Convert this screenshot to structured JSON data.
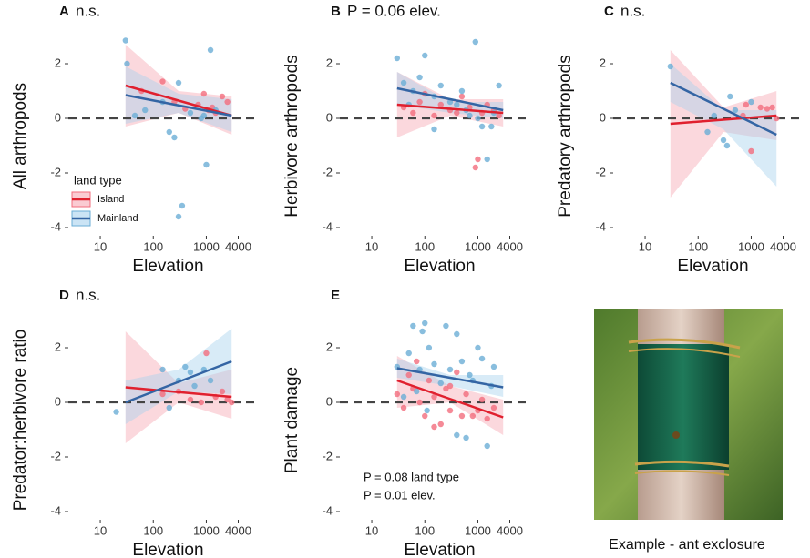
{
  "chart_data": [
    {
      "type": "scatter",
      "label": "A",
      "annotation": "n.s.",
      "xlabel": "Elevation",
      "ylabel": "All arthropods",
      "log_x": true,
      "xlim": [
        2.5,
        9000
      ],
      "xticks": [
        10,
        100,
        1000,
        4000
      ],
      "ylim": [
        -4.3,
        3
      ],
      "yticks": [
        -4,
        -2,
        0,
        2
      ],
      "reference_line": 0,
      "legend": {
        "title": "land type",
        "position": "bottom-left"
      },
      "series": [
        {
          "name": "Island",
          "color": "#f26d7d",
          "line_color": "#e0202e",
          "band_color": "#f7a8b4",
          "x": [
            60,
            150,
            250,
            400,
            700,
            900,
            1100,
            1300,
            1500,
            2000,
            2500
          ],
          "values": [
            1.0,
            1.35,
            0.6,
            0.35,
            0.5,
            0.9,
            0.3,
            0.4,
            0.2,
            0.8,
            0.6
          ],
          "fit": {
            "x": [
              30,
              300,
              3000
            ],
            "y": [
              1.2,
              0.65,
              0.1
            ],
            "lower": [
              -0.3,
              0.2,
              -0.6
            ],
            "upper": [
              2.7,
              1.0,
              0.8
            ]
          }
        },
        {
          "name": "Mainland",
          "color": "#6baed6",
          "line_color": "#3465a4",
          "band_color": "#a9d2ee",
          "x": [
            30,
            32,
            45,
            70,
            150,
            200,
            250,
            300,
            350,
            500,
            800,
            1000,
            1200,
            1500,
            300,
            900
          ],
          "values": [
            2.85,
            2.0,
            0.1,
            0.3,
            0.6,
            -0.5,
            -0.7,
            -3.6,
            -3.2,
            0.2,
            0.0,
            -1.7,
            2.5,
            0.3,
            1.3,
            0.1
          ],
          "fit": {
            "x": [
              30,
              300,
              3000
            ],
            "y": [
              0.85,
              0.475,
              0.1
            ],
            "lower": [
              -0.2,
              0.2,
              -0.5
            ],
            "upper": [
              1.9,
              0.9,
              0.7
            ]
          }
        }
      ]
    },
    {
      "type": "scatter",
      "label": "B",
      "annotation": "P = 0.06 elev.",
      "xlabel": "Elevation",
      "ylabel": "Herbivore arthropods",
      "log_x": true,
      "xlim": [
        2.5,
        9000
      ],
      "xticks": [
        10,
        100,
        1000,
        4000
      ],
      "ylim": [
        -4.3,
        3
      ],
      "yticks": [
        -4,
        -2,
        0,
        2
      ],
      "reference_line": 0,
      "series": [
        {
          "name": "Island",
          "color": "#f26d7d",
          "line_color": "#e0202e",
          "band_color": "#f7a8b4",
          "x": [
            40,
            60,
            80,
            100,
            150,
            200,
            300,
            400,
            500,
            700,
            900,
            1000,
            1200,
            1500,
            2000,
            2500
          ],
          "values": [
            0.4,
            0.2,
            0.6,
            0.9,
            0.1,
            0.5,
            0.3,
            0.2,
            0.8,
            0.4,
            -1.8,
            -1.5,
            0.2,
            0.5,
            0.3,
            0.1
          ],
          "fit": {
            "x": [
              30,
              300,
              3000
            ],
            "y": [
              0.5,
              0.35,
              0.2
            ],
            "lower": [
              -0.7,
              0.1,
              -0.3
            ],
            "upper": [
              1.7,
              0.7,
              0.7
            ]
          }
        },
        {
          "name": "Mainland",
          "color": "#6baed6",
          "line_color": "#3465a4",
          "band_color": "#a9d2ee",
          "x": [
            30,
            40,
            50,
            60,
            80,
            100,
            150,
            200,
            300,
            400,
            500,
            700,
            900,
            1000,
            1200,
            1500,
            2000,
            2500,
            150,
            600,
            1800
          ],
          "values": [
            2.2,
            1.3,
            0.5,
            1.0,
            1.5,
            2.3,
            -0.4,
            1.2,
            0.6,
            0.5,
            1.0,
            0.1,
            2.8,
            0.0,
            -0.3,
            -1.5,
            0.2,
            1.2,
            0.8,
            0.3,
            -0.3
          ],
          "fit": {
            "x": [
              30,
              300,
              3000
            ],
            "y": [
              1.1,
              0.7,
              0.3
            ],
            "lower": [
              0.5,
              0.2,
              0.0
            ],
            "upper": [
              1.7,
              0.6,
              0.6
            ]
          }
        }
      ]
    },
    {
      "type": "scatter",
      "label": "C",
      "annotation": "n.s.",
      "xlabel": "Elevation",
      "ylabel": "Predatory arthropods",
      "log_x": true,
      "xlim": [
        2.5,
        9000
      ],
      "xticks": [
        10,
        100,
        1000,
        4000
      ],
      "ylim": [
        -4.3,
        3
      ],
      "yticks": [
        -4,
        -2,
        0,
        2
      ],
      "reference_line": 0,
      "series": [
        {
          "name": "Island",
          "color": "#f26d7d",
          "line_color": "#e0202e",
          "band_color": "#f7a8b4",
          "x": [
            700,
            1000,
            1500,
            2000,
            2500,
            3000,
            800
          ],
          "values": [
            0.1,
            -1.2,
            0.4,
            0.35,
            0.4,
            0.0,
            0.5
          ],
          "fit": {
            "x": [
              30,
              300,
              3000
            ],
            "y": [
              -0.2,
              -0.05,
              0.1
            ],
            "lower": [
              -2.9,
              -0.5,
              -0.8
            ],
            "upper": [
              2.5,
              0.4,
              1.0
            ]
          }
        },
        {
          "name": "Mainland",
          "color": "#6baed6",
          "line_color": "#3465a4",
          "band_color": "#a9d2ee",
          "x": [
            30,
            150,
            200,
            300,
            350,
            400,
            500,
            1000
          ],
          "values": [
            1.9,
            -0.5,
            0.1,
            -0.8,
            -1.0,
            0.8,
            0.3,
            0.6
          ],
          "fit": {
            "x": [
              30,
              300,
              3000
            ],
            "y": [
              1.3,
              0.35,
              -0.6
            ],
            "lower": [
              0.6,
              -0.4,
              -2.5
            ],
            "upper": [
              2.0,
              0.3,
              0.3
            ]
          }
        }
      ]
    },
    {
      "type": "scatter",
      "label": "D",
      "annotation": "n.s.",
      "xlabel": "Elevation",
      "ylabel": "Predator:herbivore ratio",
      "log_x": true,
      "xlim": [
        2.5,
        9000
      ],
      "xticks": [
        10,
        100,
        1000,
        4000
      ],
      "ylim": [
        -4.3,
        3
      ],
      "yticks": [
        -4,
        -2,
        0,
        2
      ],
      "reference_line": 0,
      "series": [
        {
          "name": "Island",
          "color": "#f26d7d",
          "line_color": "#e0202e",
          "band_color": "#f7a8b4",
          "x": [
            150,
            300,
            500,
            800,
            1000,
            1500,
            2000,
            2500,
            3000
          ],
          "values": [
            0.3,
            0.4,
            0.1,
            0.0,
            1.8,
            0.2,
            0.4,
            0.1,
            0.0
          ],
          "fit": {
            "x": [
              30,
              300,
              3000
            ],
            "y": [
              0.55,
              0.375,
              0.2
            ],
            "lower": [
              -1.5,
              0.0,
              -0.6
            ],
            "upper": [
              2.6,
              0.7,
              1.2
            ]
          }
        },
        {
          "name": "Mainland",
          "color": "#6baed6",
          "line_color": "#3465a4",
          "band_color": "#a9d2ee",
          "x": [
            20,
            150,
            200,
            300,
            400,
            500,
            600,
            900,
            1200
          ],
          "values": [
            -0.35,
            1.2,
            -0.2,
            0.8,
            1.3,
            1.1,
            0.6,
            1.2,
            0.8
          ],
          "fit": {
            "x": [
              30,
              300,
              3000
            ],
            "y": [
              0.0,
              0.75,
              1.5
            ],
            "lower": [
              -0.8,
              0.4,
              0.3
            ],
            "upper": [
              0.8,
              1.2,
              2.7
            ]
          }
        }
      ]
    },
    {
      "type": "scatter",
      "label": "E",
      "xlabel": "Elevation",
      "ylabel": "Plant damage",
      "log_x": true,
      "xlim": [
        2.5,
        9000
      ],
      "xticks": [
        10,
        100,
        1000,
        4000
      ],
      "ylim": [
        -4.3,
        3
      ],
      "yticks": [
        -4,
        -2,
        0,
        2
      ],
      "reference_line": 0,
      "notes": [
        "P = 0.08 land type",
        "P = 0.01 elev."
      ],
      "series": [
        {
          "name": "Island",
          "color": "#f26d7d",
          "line_color": "#e0202e",
          "band_color": "#f7a8b4",
          "x": [
            30,
            40,
            50,
            60,
            70,
            80,
            100,
            120,
            150,
            200,
            250,
            300,
            400,
            500,
            600,
            800,
            1000,
            1200,
            1500,
            2000,
            150,
            300
          ],
          "values": [
            0.3,
            -0.2,
            1.0,
            0.5,
            1.5,
            0.0,
            -0.5,
            0.8,
            0.2,
            -0.8,
            0.5,
            -0.3,
            1.1,
            -0.5,
            0.3,
            -0.5,
            -0.3,
            0.1,
            -0.6,
            -0.2,
            -0.9,
            0.6
          ],
          "fit": {
            "x": [
              30,
              300,
              3000
            ],
            "y": [
              0.8,
              0.125,
              -0.55
            ],
            "lower": [
              -0.2,
              0.0,
              -1.2
            ],
            "upper": [
              1.7,
              0.6,
              0.1
            ]
          }
        },
        {
          "name": "Mainland",
          "color": "#6baed6",
          "line_color": "#3465a4",
          "band_color": "#a9d2ee",
          "x": [
            30,
            40,
            50,
            60,
            70,
            80,
            100,
            120,
            150,
            200,
            250,
            300,
            400,
            500,
            600,
            800,
            1000,
            1200,
            1500,
            2000,
            90,
            110,
            700,
            1800,
            400
          ],
          "values": [
            1.3,
            0.2,
            1.8,
            2.8,
            0.4,
            1.2,
            2.9,
            2.0,
            1.4,
            0.7,
            2.8,
            1.2,
            2.5,
            1.5,
            -1.3,
            0.8,
            2.0,
            1.6,
            -1.6,
            1.3,
            2.6,
            -0.3,
            1.0,
            0.6,
            -1.2
          ],
          "fit": {
            "x": [
              30,
              300,
              3000
            ],
            "y": [
              1.25,
              0.9,
              0.55
            ],
            "lower": [
              0.9,
              0.6,
              0.2
            ],
            "upper": [
              1.6,
              1.0,
              1.0
            ]
          }
        }
      ]
    }
  ],
  "image_panel": {
    "caption": "Example - ant exclosure"
  }
}
